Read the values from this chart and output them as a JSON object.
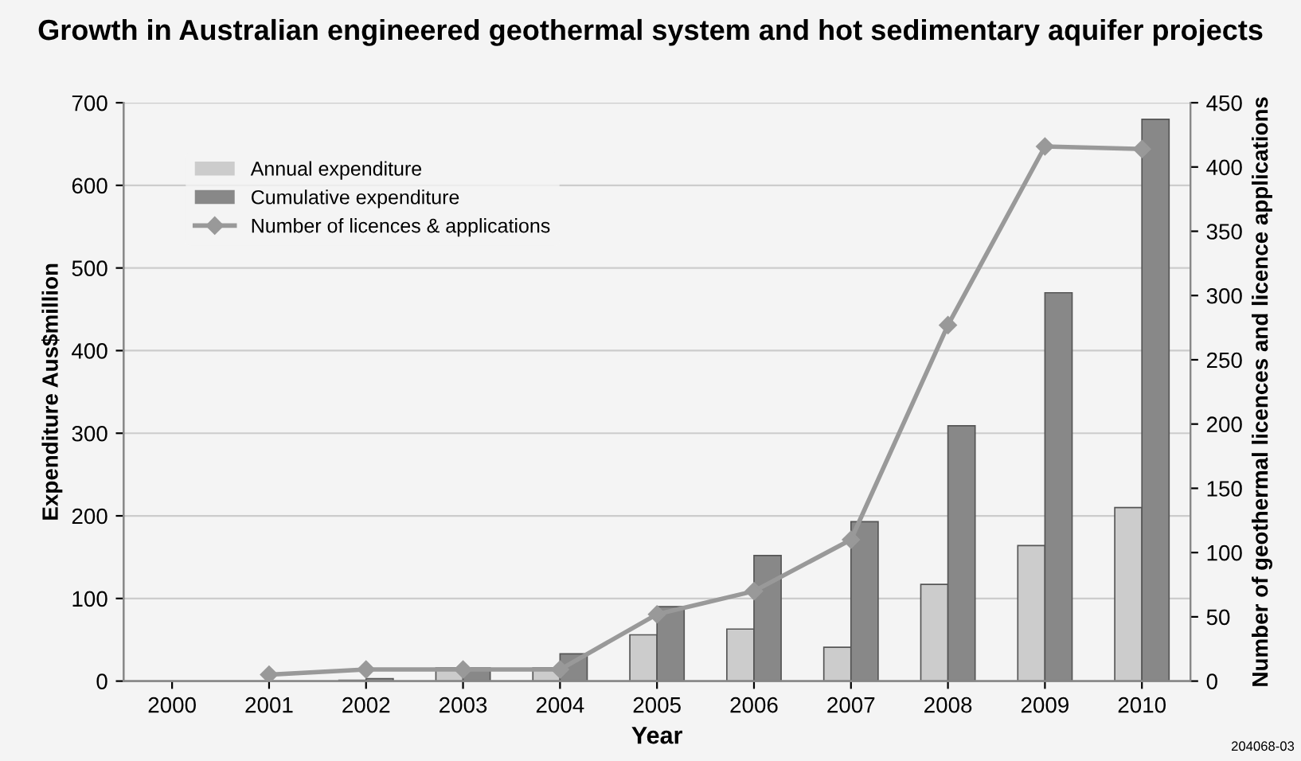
{
  "chart_data": {
    "type": "bar",
    "title": "Growth in Australian engineered geothermal system and hot sedimentary aquifer projects",
    "xlabel": "Year",
    "ylabel": "Expenditure Aus$million",
    "y2label": "Number of geothermal licences and licence applications",
    "categories": [
      "2000",
      "2001",
      "2002",
      "2003",
      "2004",
      "2005",
      "2006",
      "2007",
      "2008",
      "2009",
      "2010"
    ],
    "series": [
      {
        "name": "Annual expenditure",
        "color": "#cccccc",
        "values": [
          null,
          null,
          1,
          16,
          16,
          56,
          63,
          41,
          117,
          164,
          210
        ]
      },
      {
        "name": "Cumulative expenditure",
        "color": "#888888",
        "values": [
          null,
          null,
          3,
          16,
          33,
          90,
          152,
          193,
          309,
          470,
          680
        ]
      },
      {
        "name": "Number of licences & applications",
        "type": "line",
        "axis": "y2",
        "color": "#999999",
        "marker": "diamond",
        "values": [
          null,
          5,
          9,
          9,
          9,
          52,
          70,
          110,
          277,
          416,
          414
        ]
      }
    ],
    "ylim": [
      0,
      700
    ],
    "yticks": [
      0,
      100,
      200,
      300,
      400,
      500,
      600,
      700
    ],
    "y2lim": [
      0,
      450
    ],
    "y2ticks": [
      0,
      50,
      100,
      150,
      200,
      250,
      300,
      350,
      400,
      450
    ],
    "grid": "y",
    "legend": "top left",
    "annotations": [
      "204068-03"
    ]
  }
}
